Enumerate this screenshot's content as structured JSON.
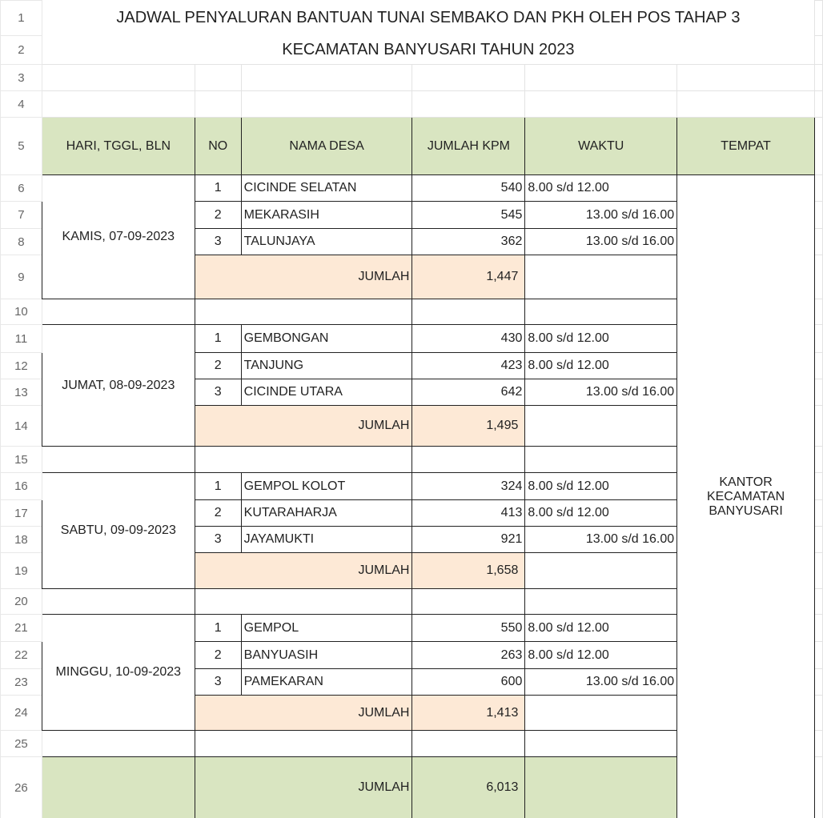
{
  "title_line1": "JADWAL PENYALURAN BANTUAN TUNAI SEMBAKO DAN PKH OLEH POS TAHAP 3",
  "title_line2": "KECAMATAN BANYUSARI TAHUN 2023",
  "row_numbers": [
    "1",
    "2",
    "3",
    "4",
    "5",
    "6",
    "7",
    "8",
    "9",
    "10",
    "11",
    "12",
    "13",
    "14",
    "15",
    "16",
    "17",
    "18",
    "19",
    "20",
    "21",
    "22",
    "23",
    "24",
    "25",
    "26"
  ],
  "headers": {
    "date": "HARI, TGGL, BLN",
    "no": "NO",
    "desa": "NAMA DESA",
    "kpm": "JUMLAH KPM",
    "waktu": "WAKTU",
    "tempat": "TEMPAT"
  },
  "tempat": "KANTOR KECAMATAN BANYUSARI",
  "jumlah_label": "JUMLAH",
  "grand_total": "6,013",
  "colors": {
    "header_green": "#d9e5c1",
    "subtotal_peach": "#fde9d6"
  },
  "groups": [
    {
      "date": "KAMIS, 07-09-2023",
      "total": "1,447",
      "rows": [
        {
          "no": "1",
          "desa": "CICINDE SELATAN",
          "kpm": "540",
          "waktu": "8.00 s/d 12.00",
          "align": "left"
        },
        {
          "no": "2",
          "desa": "MEKARASIH",
          "kpm": "545",
          "waktu": "13.00 s/d 16.00",
          "align": "right"
        },
        {
          "no": "3",
          "desa": "TALUNJAYA",
          "kpm": "362",
          "waktu": "13.00 s/d 16.00",
          "align": "right"
        }
      ]
    },
    {
      "date": "JUMAT, 08-09-2023",
      "total": "1,495",
      "rows": [
        {
          "no": "1",
          "desa": "GEMBONGAN",
          "kpm": "430",
          "waktu": "8.00 s/d 12.00",
          "align": "left"
        },
        {
          "no": "2",
          "desa": "TANJUNG",
          "kpm": "423",
          "waktu": "8.00 s/d 12.00",
          "align": "left"
        },
        {
          "no": "3",
          "desa": "CICINDE UTARA",
          "kpm": "642",
          "waktu": "13.00 s/d 16.00",
          "align": "right"
        }
      ]
    },
    {
      "date": "SABTU, 09-09-2023",
      "total": "1,658",
      "rows": [
        {
          "no": "1",
          "desa": "GEMPOL KOLOT",
          "kpm": "324",
          "waktu": "8.00 s/d 12.00",
          "align": "left"
        },
        {
          "no": "2",
          "desa": "KUTARAHARJA",
          "kpm": "413",
          "waktu": "8.00 s/d 12.00",
          "align": "left"
        },
        {
          "no": "3",
          "desa": "JAYAMUKTI",
          "kpm": "921",
          "waktu": "13.00 s/d 16.00",
          "align": "right"
        }
      ]
    },
    {
      "date": "MINGGU, 10-09-2023",
      "total": "1,413",
      "rows": [
        {
          "no": "1",
          "desa": "GEMPOL",
          "kpm": "550",
          "waktu": "8.00 s/d 12.00",
          "align": "left"
        },
        {
          "no": "2",
          "desa": "BANYUASIH",
          "kpm": "263",
          "waktu": "8.00 s/d 12.00",
          "align": "left"
        },
        {
          "no": "3",
          "desa": "PAMEKARAN",
          "kpm": "600",
          "waktu": "13.00 s/d 16.00",
          "align": "right"
        }
      ]
    }
  ]
}
